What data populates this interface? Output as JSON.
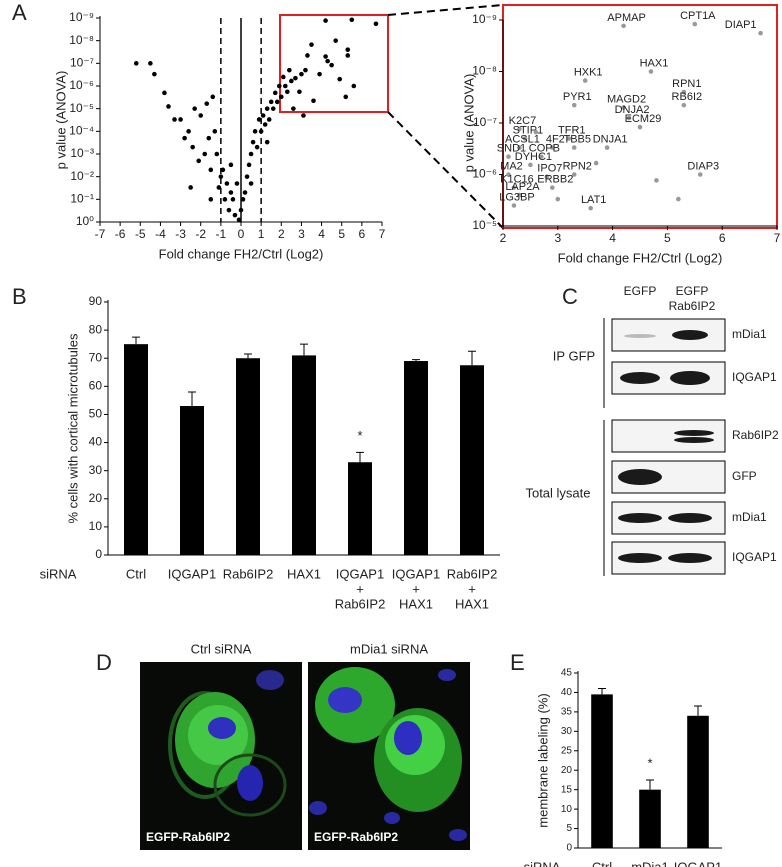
{
  "panel_labels": [
    "A",
    "B",
    "C",
    "D",
    "E"
  ],
  "chart_data": [
    {
      "type": "scatter",
      "xlabel": "Fold change FH2/Ctrl (Log2)",
      "ylabel": "p value (ANOVA)",
      "color": "#000000",
      "log_y": true,
      "xlim": [
        -7,
        7
      ],
      "xticks": [
        -7,
        -6,
        -5,
        -4,
        -3,
        -2,
        -1,
        0,
        1,
        2,
        3,
        4,
        5,
        6,
        7
      ],
      "ylim": [
        1,
        1e-09
      ],
      "yticks": [
        {
          "value": 1,
          "label": "10⁰"
        },
        {
          "value": 0.1,
          "label": "10⁻¹"
        },
        {
          "value": 0.01,
          "label": "10⁻²"
        },
        {
          "value": 0.001,
          "label": "10⁻³"
        },
        {
          "value": 0.0001,
          "label": "10⁻⁴"
        },
        {
          "value": 1e-05,
          "label": "10⁻⁵"
        },
        {
          "value": 1e-06,
          "label": "10⁻⁶"
        },
        {
          "value": 1e-07,
          "label": "10⁻⁷"
        },
        {
          "value": 1e-08,
          "label": "10⁻⁸"
        },
        {
          "value": 1e-09,
          "label": "10⁻⁹"
        }
      ],
      "vlines": [
        -1,
        0,
        1
      ],
      "vline_styles": [
        "dashed",
        "solid",
        "dashed"
      ],
      "x": [
        -5.2,
        -4.5,
        -4.3,
        -3.8,
        -3.6,
        -3.3,
        -3,
        -2.8,
        -2.6,
        -2.4,
        -2.3,
        -2.1,
        -2,
        -1.8,
        -1.7,
        -1.6,
        -1.5,
        -1.4,
        -1.3,
        -1.2,
        -1.1,
        -1,
        -0.9,
        -0.8,
        -0.7,
        -0.6,
        -0.5,
        -0.4,
        -0.3,
        -0.2,
        -0.1,
        0,
        0.1,
        0.2,
        0.3,
        0.4,
        0.5,
        0.6,
        0.7,
        0.8,
        0.9,
        1,
        1.1,
        1.2,
        1.3,
        1.4,
        1.5,
        1.6,
        1.7,
        1.8,
        1.9,
        2,
        2.1,
        2.2,
        2.3,
        2.4,
        2.5,
        2.7,
        2.9,
        3,
        3.2,
        3.3,
        3.5,
        3.6,
        3.9,
        4.2,
        4.3,
        4.5,
        4.2,
        4.7,
        5.3,
        5.3,
        5.5,
        5.6,
        6.7,
        5.2,
        4.9,
        2.6,
        3.1,
        1.3,
        0.5,
        -0.5,
        -1.5,
        -2.5
      ],
      "values": [
        1e-07,
        1e-07,
        3e-07,
        2e-06,
        8e-06,
        3e-05,
        3e-05,
        0.0002,
        0.0001,
        0.0005,
        1e-05,
        0.002,
        2e-05,
        0.001,
        6e-06,
        0.0002,
        0.005,
        3e-06,
        0.0001,
        0.001,
        0.03,
        0.01,
        0.005,
        0.1,
        0.02,
        0.3,
        0.05,
        0.1,
        0.5,
        0.02,
        0.8,
        0.3,
        0.1,
        0.05,
        0.01,
        0.003,
        0.001,
        0.0003,
        0.0001,
        0.0005,
        3e-05,
        0.0001,
        2e-05,
        5e-05,
        1e-05,
        3e-05,
        5e-06,
        1e-05,
        2e-06,
        5e-06,
        1e-06,
        3e-06,
        4e-07,
        1e-06,
        1.8e-06,
        2e-07,
        6e-07,
        4.5e-07,
        1.8e-06,
        3e-07,
        2e-07,
        4.5e-08,
        1.5e-08,
        4.5e-06,
        3e-07,
        5e-08,
        8e-08,
        1.2e-07,
        1.3e-09,
        1e-08,
        2.5e-08,
        4.5e-08,
        1.2e-09,
        1e-06,
        1.8e-09,
        3e-06,
        5e-07,
        1e-05,
        2e-05,
        0.0003,
        0.02,
        0.003,
        0.1,
        0.03
      ]
    },
    {
      "type": "scatter",
      "xlabel": "Fold change FH2/Ctrl (Log2)",
      "ylabel": "p value (ANOVA)",
      "color": "#999999",
      "frame_color": "#e02020",
      "log_y": true,
      "xlim": [
        2,
        7
      ],
      "xticks": [
        2,
        3,
        4,
        5,
        6,
        7
      ],
      "ylim": [
        1e-05,
        1e-09
      ],
      "yticks": [
        {
          "value": 1e-05,
          "label": "10⁻⁵"
        },
        {
          "value": 1e-06,
          "label": "10⁻⁶"
        },
        {
          "value": 1e-07,
          "label": "10⁻⁷"
        },
        {
          "value": 1e-08,
          "label": "10⁻⁸"
        },
        {
          "value": 1e-09,
          "label": "10⁻⁹"
        }
      ],
      "x": [
        4.2,
        5.5,
        6.7,
        4.7,
        3.5,
        5.3,
        5.3,
        3.3,
        4.2,
        4.3,
        4.5,
        2.3,
        2.4,
        3.2,
        2.3,
        2.9,
        3.3,
        3.9,
        2.1,
        2.7,
        2.5,
        2.1,
        2.8,
        3.3,
        5.6,
        2.2,
        2.9,
        2.3,
        2.2,
        3.6,
        3.0,
        4.8,
        5.2,
        3.7,
        2.6
      ],
      "values": [
        1.3e-09,
        1.2e-09,
        1.8e-09,
        1e-08,
        1.5e-08,
        2.5e-08,
        4.5e-08,
        4.5e-08,
        5e-08,
        8e-08,
        1.2e-07,
        1.3e-07,
        2e-07,
        2e-07,
        3e-07,
        3e-07,
        3e-07,
        3e-07,
        4.5e-07,
        4.5e-07,
        6.5e-07,
        1e-06,
        1.1e-06,
        1e-06,
        1e-06,
        1.8e-06,
        1.8e-06,
        2.5e-06,
        4e-06,
        4.5e-06,
        3e-06,
        1.3e-06,
        3e-06,
        6e-07,
        1.5e-07
      ],
      "labels": [
        "APMAP",
        "CPT1A",
        "DIAP1",
        "HAX1",
        "HXK1",
        "RPN1",
        "RB6I2",
        "PYR1",
        "MAGD2",
        "DNJA2",
        "ECM29",
        "K2C7",
        "STIP1",
        "TFR1",
        "ACSL1",
        "4F2",
        "TBB5",
        "DNJA1",
        "SND1",
        "COPB",
        "DYHC1",
        "MA2",
        "IPO7",
        "RPN2",
        "DIAP3",
        "K1C16",
        "ERBB2",
        "LAP2A",
        "LG3BP",
        "LAT1",
        null,
        null,
        null,
        null,
        null
      ]
    },
    {
      "type": "bar",
      "ylabel": "% cells with cortical microtubules",
      "axis_label": "siRNA",
      "color": "#000000",
      "categories": [
        [
          "Ctrl"
        ],
        [
          "IQGAP1"
        ],
        [
          "Rab6IP2"
        ],
        [
          "HAX1"
        ],
        [
          "IQGAP1",
          "+",
          "Rab6IP2"
        ],
        [
          "IQGAP1",
          "+",
          "HAX1"
        ],
        [
          "Rab6IP2",
          "+",
          "HAX1"
        ]
      ],
      "values": [
        75,
        53,
        70,
        71,
        33,
        69,
        67.5
      ],
      "errors": [
        2.5,
        5,
        1.5,
        4,
        3.5,
        0.5,
        5
      ],
      "significant": [
        false,
        false,
        false,
        false,
        true,
        false,
        false
      ],
      "significance_mark": "*",
      "ylim": [
        0,
        90
      ],
      "yticks": [
        0,
        10,
        20,
        30,
        40,
        50,
        60,
        70,
        80,
        90
      ]
    },
    {
      "type": "bar",
      "ylabel": "membrane labeling (%)",
      "axis_label": "siRNA",
      "color": "#000000",
      "categories": [
        [
          "Ctrl"
        ],
        [
          "mDia1"
        ],
        [
          "IQGAP1"
        ]
      ],
      "values": [
        39.5,
        15,
        34
      ],
      "errors": [
        1.5,
        2.5,
        2.5
      ],
      "significant": [
        false,
        true,
        false
      ],
      "significance_mark": "*",
      "ylim": [
        0,
        45
      ],
      "yticks": [
        0,
        5,
        10,
        15,
        20,
        25,
        30,
        35,
        40,
        45
      ]
    }
  ],
  "blot": {
    "lanes": [
      [
        "EGFP"
      ],
      [
        "EGFP",
        "Rab6IP2"
      ]
    ],
    "groups": [
      "IP GFP",
      "Total lysate"
    ],
    "rows": [
      "mDia1",
      "IQGAP1",
      "Rab6IP2",
      "GFP",
      "mDia1",
      "IQGAP1"
    ]
  },
  "micrographs": {
    "titles": [
      "Ctrl siRNA",
      "mDia1 siRNA"
    ],
    "captions": [
      "EGFP-Rab6IP2",
      "EGFP-Rab6IP2"
    ]
  }
}
